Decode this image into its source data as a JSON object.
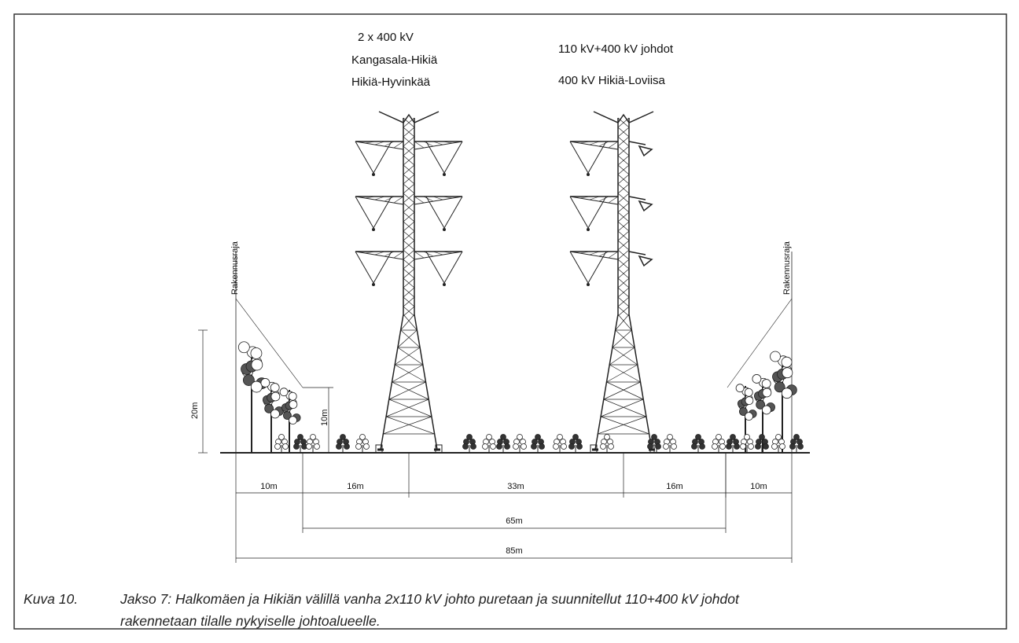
{
  "tower_labels": {
    "left": [
      "2 x 400 kV",
      "Kangasala-Hikiä",
      "Hikiä-Hyvinkää"
    ],
    "right": [
      "110 kV+400 kV johdot",
      "400 kV Hikiä-Loviisa"
    ]
  },
  "boundary_labels": [
    "Rakennusraja",
    "Rakennusraja"
  ],
  "heights": [
    "20m",
    "10m"
  ],
  "widths": [
    "10m",
    "16m",
    "33m",
    "16m",
    "10m"
  ],
  "totals": [
    "65m",
    "85m"
  ],
  "caption": {
    "number": "Kuva 10.",
    "lines": [
      "Jakso 7: Halkomäen ja Hikiän välillä vanha 2x110 kV johto puretaan ja suunnitellut 110+400 kV johdot",
      "rakennetaan tilalle nykyiselle johtoalueelle."
    ]
  }
}
